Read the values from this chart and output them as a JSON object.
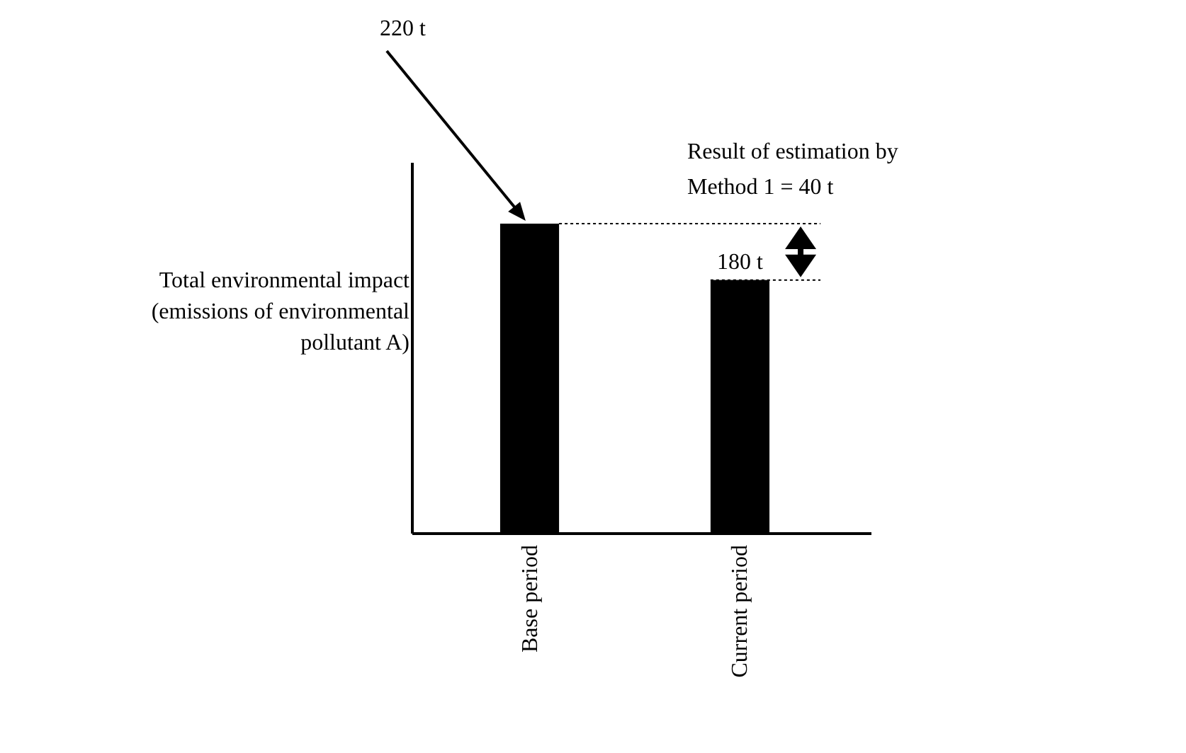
{
  "chart_data": {
    "type": "bar",
    "ylabel": "Total environmental impact (emissions of environmental pollutant A)",
    "categories": [
      "Base period",
      "Current period"
    ],
    "values": [
      220,
      180
    ],
    "value_labels": [
      "220 t",
      "180 t"
    ],
    "color": "#000000",
    "tick_labels": "x",
    "annotations": [
      "Result of estimation by Method 1 = 40 t"
    ]
  }
}
